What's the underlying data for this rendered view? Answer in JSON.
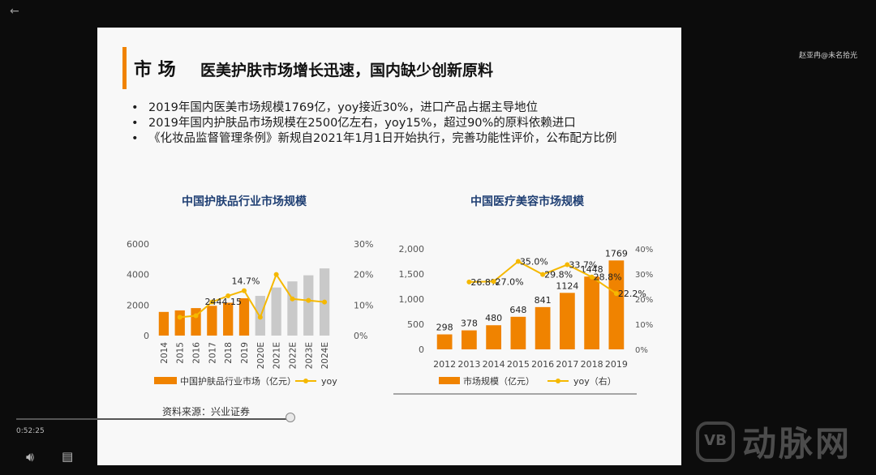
{
  "watermark": "赵亚冉@未名拾光",
  "player": {
    "time": "0:52:25"
  },
  "brand": {
    "badge": "VB",
    "name": "动脉网"
  },
  "slide": {
    "title_main": "市 场",
    "title_sub": "医美护肤市场增长迅速，国内缺少创新原料",
    "bullets": [
      "2019年国内医美市场规模1769亿，yoy接近30%，进口产品占据主导地位",
      "2019年国内护肤品市场规模在2500亿左右，yoy15%，超过90%的原料依赖进口",
      "《化妆品监督管理条例》新规自2021年1月1日开始执行，完善功能性评价，公布配方比例"
    ],
    "source": "资料来源：兴业证券"
  },
  "chart_data": [
    {
      "type": "bar",
      "title": "中国护肤品行业市场规模",
      "categories": [
        "2014",
        "2015",
        "2016",
        "2017",
        "2018",
        "2019",
        "2020E",
        "2021E",
        "2022E",
        "2023E",
        "2024E"
      ],
      "series": [
        {
          "name": "中国护肤品行业市场（亿元）",
          "type": "bar",
          "axis": "left",
          "values": [
            1550,
            1650,
            1800,
            1950,
            2150,
            2444.15,
            2600,
            3150,
            3550,
            3950,
            4400
          ]
        },
        {
          "name": "yoy",
          "type": "line",
          "axis": "right",
          "values": [
            null,
            6.0,
            6.5,
            11.0,
            13.0,
            14.7,
            6.0,
            20.0,
            12.0,
            11.5,
            11.0
          ]
        }
      ],
      "data_labels": [
        "2444.15",
        "14.7%"
      ],
      "y_left": {
        "ticks": [
          "0",
          "2000",
          "4000",
          "6000"
        ],
        "range": [
          0,
          6000
        ]
      },
      "y_right": {
        "ticks": [
          "0%",
          "10%",
          "20%",
          "30%"
        ],
        "range": [
          0,
          30
        ]
      },
      "colors": {
        "bar": "#f08300",
        "bar_estimate": "#c9c9c9",
        "line": "#f5b800"
      }
    },
    {
      "type": "bar",
      "title": "中国医疗美容市场规模",
      "categories": [
        "2012",
        "2013",
        "2014",
        "2015",
        "2016",
        "2017",
        "2018",
        "2019"
      ],
      "series": [
        {
          "name": "市场规模（亿元）",
          "type": "bar",
          "axis": "left",
          "values": [
            298,
            378,
            480,
            648,
            841,
            1124,
            1448,
            1769
          ]
        },
        {
          "name": "yoy（右）",
          "type": "line",
          "axis": "right",
          "values": [
            null,
            26.8,
            27.0,
            35.0,
            29.8,
            33.7,
            28.8,
            22.2
          ]
        }
      ],
      "bar_labels": [
        "298",
        "378",
        "480",
        "648",
        "841",
        "1124",
        "1448",
        "1769"
      ],
      "line_labels": [
        "",
        "26.8%",
        "27.0%",
        "35.0%",
        "29.8%",
        "33.7%",
        "28.8%",
        "22.2%"
      ],
      "y_left": {
        "ticks": [
          "0",
          "500",
          "1,000",
          "1,500",
          "2,000"
        ],
        "range": [
          0,
          2000
        ]
      },
      "y_right": {
        "ticks": [
          "0%",
          "10%",
          "20%",
          "30%",
          "40%"
        ],
        "range": [
          0,
          40
        ]
      },
      "colors": {
        "bar": "#f08300",
        "line": "#f5b800"
      }
    }
  ]
}
